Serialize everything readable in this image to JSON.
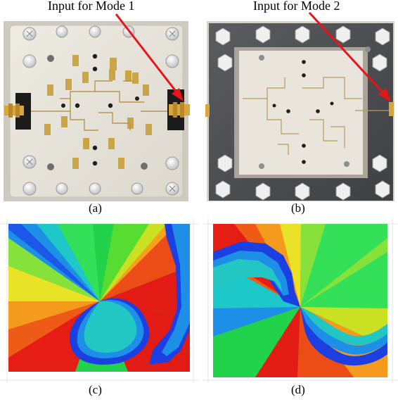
{
  "figure": {
    "annotations": {
      "mode1": "Input for Mode 1",
      "mode2": "Input for Mode 2"
    },
    "captions": {
      "a": "(a)",
      "b": "(b)",
      "c": "(c)",
      "d": "(d)"
    },
    "colors": {
      "arrow": "#e8141a",
      "board": "#f2efe8",
      "frame": "#4d4e52",
      "trace": "#c9a548",
      "port": "#d9a63a",
      "bolt": "#f4f4f4"
    },
    "icons": {
      "left_photo": "antenna-board-photo",
      "right_photo": "cavity-frame-photo",
      "left_map": "phase-distribution-map",
      "right_map": "phase-distribution-map"
    }
  }
}
